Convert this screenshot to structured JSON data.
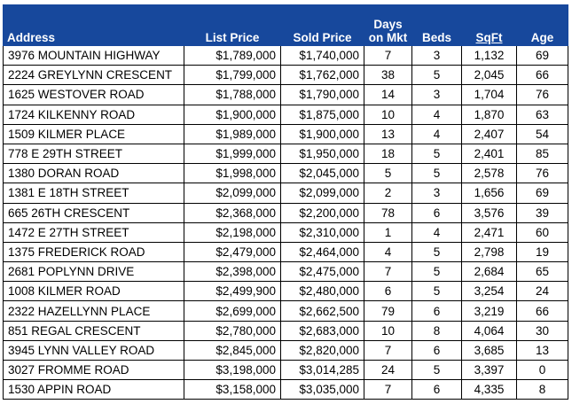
{
  "table": {
    "header": [
      "Address",
      "List Price",
      "Sold Price",
      "Days\non Mkt",
      "Beds",
      "SqFt",
      "Age"
    ],
    "rows": [
      [
        "3976 MOUNTAIN HIGHWAY",
        "$1,789,000",
        "$1,740,000",
        "7",
        "3",
        "1,132",
        "69"
      ],
      [
        "2224 GREYLYNN CRESCENT",
        "$1,799,000",
        "$1,762,000",
        "38",
        "5",
        "2,045",
        "66"
      ],
      [
        "1625 WESTOVER ROAD",
        "$1,788,000",
        "$1,790,000",
        "14",
        "3",
        "1,704",
        "76"
      ],
      [
        "1724 KILKENNY ROAD",
        "$1,900,000",
        "$1,875,000",
        "10",
        "4",
        "1,870",
        "63"
      ],
      [
        "1509 KILMER PLACE",
        "$1,989,000",
        "$1,900,000",
        "13",
        "4",
        "2,407",
        "54"
      ],
      [
        "778 E 29TH STREET",
        "$1,999,000",
        "$1,950,000",
        "18",
        "5",
        "2,401",
        "85"
      ],
      [
        "1380 DORAN ROAD",
        "$1,998,000",
        "$2,045,000",
        "5",
        "5",
        "2,578",
        "76"
      ],
      [
        "1381 E 18TH STREET",
        "$2,099,000",
        "$2,099,000",
        "2",
        "3",
        "1,656",
        "69"
      ],
      [
        "665 26TH CRESCENT",
        "$2,368,000",
        "$2,200,000",
        "78",
        "6",
        "3,576",
        "39"
      ],
      [
        "1472 E 27TH STREET",
        "$2,198,000",
        "$2,310,000",
        "1",
        "4",
        "2,471",
        "60"
      ],
      [
        "1375 FREDERICK ROAD",
        "$2,479,000",
        "$2,464,000",
        "4",
        "5",
        "2,798",
        "19"
      ],
      [
        "2681 POPLYNN DRIVE",
        "$2,398,000",
        "$2,475,000",
        "7",
        "5",
        "2,684",
        "65"
      ],
      [
        "1008 KILMER ROAD",
        "$2,499,900",
        "$2,480,000",
        "6",
        "5",
        "3,254",
        "24"
      ],
      [
        "2322 HAZELLYNN PLACE",
        "$2,699,000",
        "$2,662,500",
        "79",
        "6",
        "3,219",
        "66"
      ],
      [
        "851 REGAL CRESCENT",
        "$2,780,000",
        "$2,683,000",
        "10",
        "8",
        "4,064",
        "30"
      ],
      [
        "3945 LYNN VALLEY ROAD",
        "$2,845,000",
        "$2,820,000",
        "7",
        "6",
        "3,685",
        "13"
      ],
      [
        "3027 FROMME ROAD",
        "$3,198,000",
        "$3,014,285",
        "24",
        "5",
        "3,397",
        "0"
      ],
      [
        "1530 APPIN ROAD",
        "$3,158,000",
        "$3,035,000",
        "7",
        "6",
        "4,335",
        "8"
      ]
    ]
  }
}
